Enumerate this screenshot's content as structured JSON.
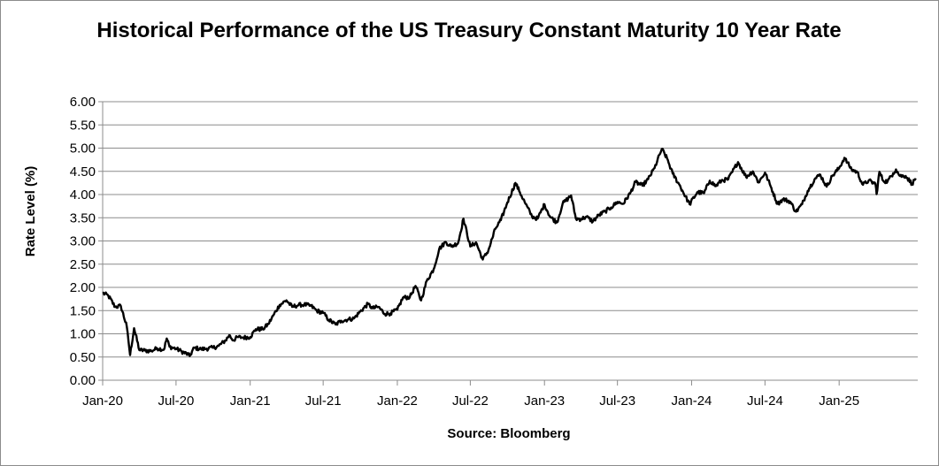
{
  "chart_data": {
    "type": "line",
    "title": "Historical Performance of the US Treasury Constant Maturity 10 Year Rate",
    "ylabel": "Rate Level (%)",
    "xlabel": "Source: Bloomberg",
    "ylim": [
      0,
      6
    ],
    "yticks": [
      "0.00",
      "0.50",
      "1.00",
      "1.50",
      "2.00",
      "2.50",
      "3.00",
      "3.50",
      "4.00",
      "4.50",
      "5.00",
      "5.50",
      "6.00"
    ],
    "xticks": [
      "Jan-20",
      "Jul-20",
      "Jan-21",
      "Jul-21",
      "Jan-22",
      "Jul-22",
      "Jan-23",
      "Jul-23",
      "Jan-24",
      "Jul-24",
      "Jan-25"
    ],
    "xlim": [
      "2020-01-01",
      "2025-07-15"
    ],
    "grid": true,
    "legend": "none",
    "line_color": "#000000",
    "series": [
      {
        "x": [
          "2020-01-01",
          "2020-01-15",
          "2020-02-01",
          "2020-02-15",
          "2020-03-01",
          "2020-03-09",
          "2020-03-19",
          "2020-04-01",
          "2020-04-15",
          "2020-05-01",
          "2020-05-15",
          "2020-06-01",
          "2020-06-08",
          "2020-06-15",
          "2020-07-01",
          "2020-07-15",
          "2020-08-01",
          "2020-08-04",
          "2020-08-15",
          "2020-09-01",
          "2020-09-15",
          "2020-10-01",
          "2020-10-15",
          "2020-11-01",
          "2020-11-10",
          "2020-11-20",
          "2020-12-01",
          "2020-12-15",
          "2021-01-01",
          "2021-01-15",
          "2021-02-01",
          "2021-02-15",
          "2021-03-01",
          "2021-03-15",
          "2021-04-01",
          "2021-04-15",
          "2021-05-01",
          "2021-05-15",
          "2021-06-01",
          "2021-06-15",
          "2021-07-01",
          "2021-07-15",
          "2021-08-01",
          "2021-08-15",
          "2021-09-01",
          "2021-09-15",
          "2021-10-01",
          "2021-10-20",
          "2021-11-01",
          "2021-11-15",
          "2021-12-01",
          "2021-12-15",
          "2022-01-01",
          "2022-01-15",
          "2022-02-01",
          "2022-02-15",
          "2022-03-01",
          "2022-03-15",
          "2022-04-01",
          "2022-04-15",
          "2022-05-01",
          "2022-05-15",
          "2022-06-01",
          "2022-06-14",
          "2022-07-01",
          "2022-07-15",
          "2022-08-01",
          "2022-08-15",
          "2022-09-01",
          "2022-09-15",
          "2022-10-01",
          "2022-10-21",
          "2022-11-01",
          "2022-11-15",
          "2022-12-01",
          "2022-12-15",
          "2023-01-01",
          "2023-01-15",
          "2023-02-01",
          "2023-02-15",
          "2023-03-01",
          "2023-03-08",
          "2023-03-20",
          "2023-04-01",
          "2023-04-15",
          "2023-05-01",
          "2023-05-15",
          "2023-06-01",
          "2023-06-15",
          "2023-07-01",
          "2023-07-15",
          "2023-08-01",
          "2023-08-15",
          "2023-09-01",
          "2023-09-15",
          "2023-10-01",
          "2023-10-19",
          "2023-11-01",
          "2023-11-15",
          "2023-12-01",
          "2023-12-27",
          "2024-01-15",
          "2024-02-01",
          "2024-02-15",
          "2024-03-01",
          "2024-03-15",
          "2024-04-01",
          "2024-04-25",
          "2024-05-15",
          "2024-06-01",
          "2024-06-15",
          "2024-07-01",
          "2024-07-15",
          "2024-08-01",
          "2024-08-15",
          "2024-09-01",
          "2024-09-16",
          "2024-10-01",
          "2024-10-15",
          "2024-11-01",
          "2024-11-15",
          "2024-12-01",
          "2024-12-15",
          "2025-01-01",
          "2025-01-14",
          "2025-02-01",
          "2025-02-15",
          "2025-03-01",
          "2025-03-15",
          "2025-04-01",
          "2025-04-04",
          "2025-04-11",
          "2025-04-20",
          "2025-05-01",
          "2025-05-15",
          "2025-05-22",
          "2025-06-01",
          "2025-06-15",
          "2025-07-01",
          "2025-07-10"
        ],
        "y": [
          1.88,
          1.82,
          1.58,
          1.6,
          1.15,
          0.54,
          1.12,
          0.65,
          0.64,
          0.63,
          0.69,
          0.66,
          0.9,
          0.72,
          0.68,
          0.62,
          0.55,
          0.52,
          0.7,
          0.67,
          0.68,
          0.7,
          0.74,
          0.86,
          0.97,
          0.86,
          0.93,
          0.92,
          0.93,
          1.1,
          1.1,
          1.21,
          1.42,
          1.62,
          1.72,
          1.58,
          1.62,
          1.63,
          1.6,
          1.5,
          1.45,
          1.3,
          1.2,
          1.28,
          1.31,
          1.33,
          1.48,
          1.64,
          1.55,
          1.58,
          1.43,
          1.44,
          1.52,
          1.78,
          1.79,
          2.03,
          1.72,
          2.14,
          2.39,
          2.83,
          2.98,
          2.88,
          2.96,
          3.48,
          2.88,
          2.97,
          2.6,
          2.8,
          3.26,
          3.45,
          3.83,
          4.25,
          4.05,
          3.8,
          3.53,
          3.48,
          3.79,
          3.52,
          3.4,
          3.8,
          3.92,
          3.98,
          3.48,
          3.47,
          3.52,
          3.42,
          3.55,
          3.64,
          3.72,
          3.84,
          3.8,
          4.02,
          4.27,
          4.19,
          4.33,
          4.57,
          4.98,
          4.78,
          4.45,
          4.22,
          3.79,
          4.05,
          4.03,
          4.3,
          4.18,
          4.3,
          4.33,
          4.7,
          4.38,
          4.5,
          4.26,
          4.47,
          4.18,
          3.8,
          3.9,
          3.85,
          3.63,
          3.79,
          4.08,
          4.33,
          4.43,
          4.17,
          4.4,
          4.57,
          4.79,
          4.54,
          4.48,
          4.21,
          4.3,
          4.23,
          4.01,
          4.49,
          4.3,
          4.28,
          4.46,
          4.54,
          4.4,
          4.4,
          4.23,
          4.35
        ]
      }
    ]
  }
}
